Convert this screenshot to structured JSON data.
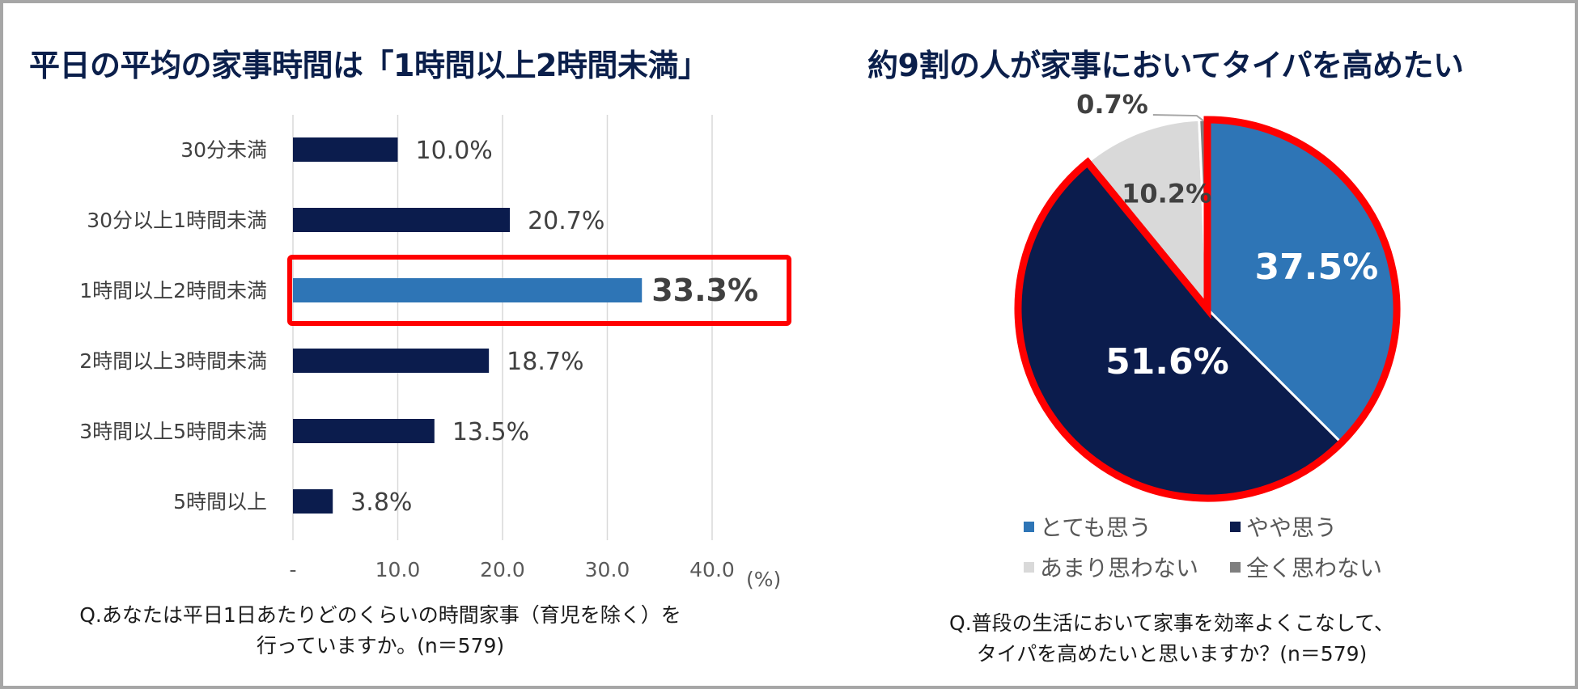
{
  "chart_data": [
    {
      "type": "bar",
      "orientation": "horizontal",
      "title": "平日の平均の家事時間は「1時間以上2時間未満」",
      "categories": [
        "30分未満",
        "30分以上1時間未満",
        "1時間以上2時間未満",
        "2時間以上3時間未満",
        "3時間以上5時間未満",
        "5時間以上"
      ],
      "values": [
        10.0,
        20.7,
        33.3,
        18.7,
        13.5,
        3.8
      ],
      "value_labels": [
        "10.0%",
        "20.7%",
        "33.3%",
        "18.7%",
        "13.5%",
        "3.8%"
      ],
      "highlight_index": 2,
      "x_ticks": [
        "-",
        "10.0",
        "20.0",
        "30.0",
        "40.0"
      ],
      "x_tick_values": [
        0,
        10,
        20,
        30,
        40
      ],
      "x_unit": "(%)",
      "xlim": [
        0,
        40
      ],
      "grid": true,
      "colors": {
        "bar": "#0b1c4d",
        "highlight": "#2e75b6",
        "highlight_box": "#ff0000",
        "grid": "#d9d9d9"
      },
      "question": [
        "Q.あなたは平日1日あたりどのくらいの時間家事（育児を除く）を",
        "行っていますか。(n＝579)"
      ]
    },
    {
      "type": "pie",
      "title": "約9割の人が家事においてタイパを高めたい",
      "slices": [
        {
          "label": "とても思う",
          "value": 37.5,
          "display": "37.5%",
          "color": "#2e75b6"
        },
        {
          "label": "やや思う",
          "value": 51.6,
          "display": "51.6%",
          "color": "#0b1c4d"
        },
        {
          "label": "あまり思わない",
          "value": 10.2,
          "display": "10.2%",
          "color": "#d9d9d9"
        },
        {
          "label": "全く思わない",
          "value": 0.7,
          "display": "0.7%",
          "color": "#7f7f7f"
        }
      ],
      "highlight_color": "#ff0000",
      "legend_placement": "bottom",
      "question": [
        "Q.普段の生活において家事を効率よくこなして、",
        "タイパを高めたいと思いますか？(n＝579)"
      ]
    }
  ]
}
